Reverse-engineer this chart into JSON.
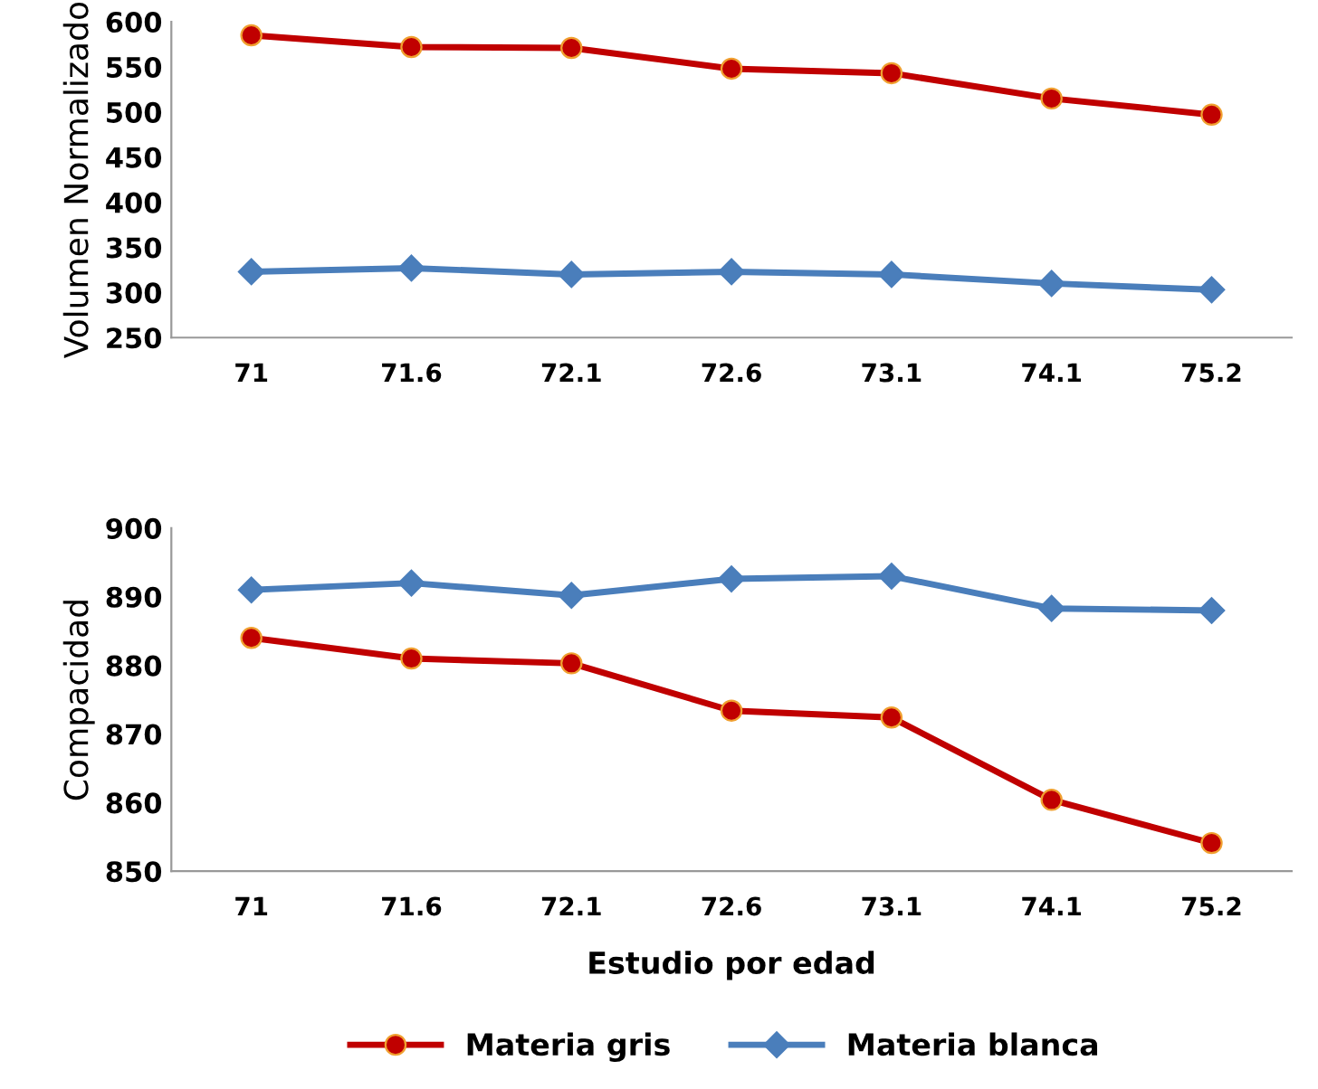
{
  "chart_data": [
    {
      "type": "line",
      "ylabel": "Volumen Normalizado",
      "categories": [
        "71",
        "71.6",
        "72.1",
        "72.6",
        "73.1",
        "74.1",
        "75.2"
      ],
      "ylim": [
        250,
        600
      ],
      "yticks": [
        250,
        300,
        350,
        400,
        450,
        500,
        550,
        600
      ],
      "grid": false,
      "legend": false,
      "series": [
        {
          "color": "#c00000",
          "marker": "circle",
          "values": [
            585,
            572,
            571,
            548,
            543,
            515,
            497
          ]
        },
        {
          "color": "#4a7ebb",
          "marker": "diamond",
          "values": [
            323,
            327,
            320,
            323,
            320,
            310,
            303
          ]
        }
      ]
    },
    {
      "type": "line",
      "ylabel": "Compacidad",
      "xlabel": "Estudio por edad",
      "categories": [
        "71",
        "71.6",
        "72.1",
        "72.6",
        "73.1",
        "74.1",
        "75.2"
      ],
      "ylim": [
        850,
        900
      ],
      "yticks": [
        850,
        860,
        870,
        880,
        890,
        900
      ],
      "grid": false,
      "legend": "bottom",
      "series": [
        {
          "name": "Materia gris",
          "color": "#c00000",
          "marker": "circle",
          "values": [
            884,
            881,
            880.3,
            873.4,
            872.4,
            860.4,
            854.1
          ]
        },
        {
          "name": "Materia blanca",
          "color": "#4a7ebb",
          "marker": "diamond",
          "values": [
            891,
            892,
            890.2,
            892.6,
            893,
            888.3,
            888
          ]
        }
      ]
    }
  ]
}
